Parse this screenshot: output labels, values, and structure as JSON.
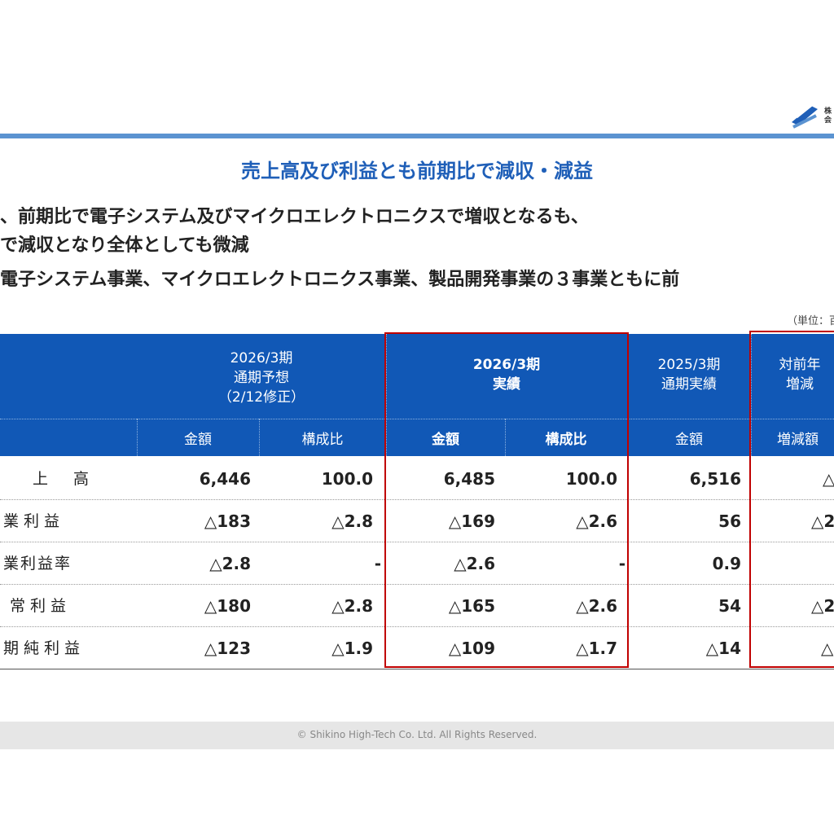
{
  "header": {
    "logo_text_line1": "株",
    "logo_text_line2": "会"
  },
  "title": "売上高及び利益とも前期比で減収・減益",
  "bullets": [
    "、前期比で電子システム及びマイクロエレクトロニクスで増収となるも、",
    "で減収となり全体としても微減",
    "電子システム事業、マイクロエレクトロニクス事業、製品開発事業の３事業ともに前"
  ],
  "unit_label": "（単位：百",
  "table": {
    "col_groups": [
      {
        "line1": "2026/3期",
        "line2": "通期予想",
        "line3": "（2/12修正）"
      },
      {
        "line1": "2026/3期",
        "line2": "実績"
      },
      {
        "line1": "2025/3期",
        "line2": "通期実績"
      },
      {
        "line1": "対前年",
        "line2": "増減"
      }
    ],
    "sub_headers": [
      "金額",
      "構成比",
      "金額",
      "構成比",
      "金額",
      "増減額"
    ],
    "rows": [
      {
        "label": "上　高",
        "v": [
          "6,446",
          "100.0",
          "6,485",
          "100.0",
          "6,516",
          "△"
        ]
      },
      {
        "label": "業利益",
        "v": [
          "△183",
          "△2.8",
          "△169",
          "△2.6",
          "56",
          "△2"
        ]
      },
      {
        "label": "業利益率",
        "v": [
          "△2.8",
          "-",
          "△2.6",
          "-",
          "0.9",
          ""
        ]
      },
      {
        "label": "常利益",
        "v": [
          "△180",
          "△2.8",
          "△165",
          "△2.6",
          "54",
          "△2"
        ]
      },
      {
        "label": "期純利益",
        "v": [
          "△123",
          "△1.9",
          "△109",
          "△1.7",
          "△14",
          "△"
        ]
      }
    ]
  },
  "footer": "© Shikino High-Tech Co. Ltd. All Rights Reserved.",
  "colors": {
    "accent": "#1f5fb8",
    "header_bg": "#1158b6",
    "highlight": "#c00000"
  }
}
